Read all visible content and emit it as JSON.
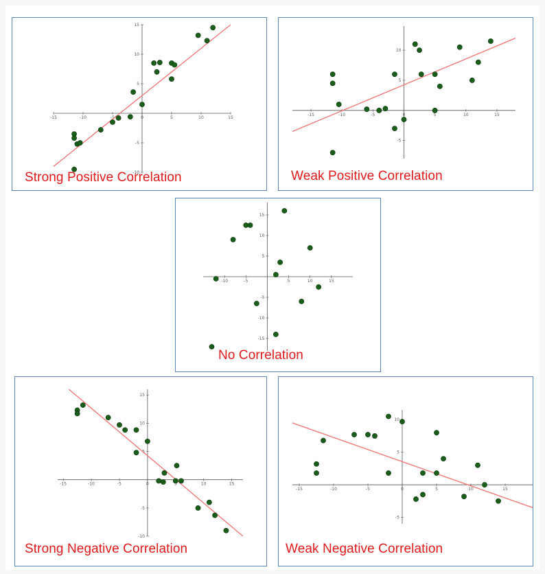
{
  "chart_data": [
    {
      "id": "strong-positive",
      "type": "scatter",
      "title": "Strong Positive Correlation",
      "xlim": [
        -15,
        15
      ],
      "ylim": [
        -10,
        15
      ],
      "xticks": [
        -15,
        -10,
        -5,
        0,
        5,
        10,
        15
      ],
      "yticks": [
        -10,
        -5,
        5,
        10,
        15
      ],
      "trendline": [
        [
          -15,
          -9
        ],
        [
          15,
          15
        ]
      ],
      "points": [
        [
          -11.5,
          -3.5
        ],
        [
          -11.5,
          -4.2
        ],
        [
          -11,
          -5.2
        ],
        [
          -11.5,
          -9.5
        ],
        [
          -10.5,
          -5
        ],
        [
          -7,
          -2.8
        ],
        [
          -5,
          -1.5
        ],
        [
          -4,
          -0.8
        ],
        [
          -2,
          -0.6
        ],
        [
          -1.5,
          3.6
        ],
        [
          0,
          1.5
        ],
        [
          2,
          8.5
        ],
        [
          2.5,
          7
        ],
        [
          3,
          8.6
        ],
        [
          5,
          8.5
        ],
        [
          5,
          5.8
        ],
        [
          5.5,
          8.2
        ],
        [
          9.5,
          13.2
        ],
        [
          11,
          12.3
        ],
        [
          12,
          14.5
        ]
      ]
    },
    {
      "id": "weak-positive",
      "type": "scatter",
      "title": "Weak Positive Correlation",
      "xlim": [
        -18,
        18
      ],
      "ylim": [
        -8,
        14
      ],
      "xticks": [
        -15,
        -10,
        -5,
        0,
        5,
        10,
        15
      ],
      "yticks": [
        -5,
        5,
        10
      ],
      "trendline": [
        [
          -18,
          -3.5
        ],
        [
          18,
          12
        ]
      ],
      "points": [
        [
          -11.5,
          6
        ],
        [
          -11.5,
          4.5
        ],
        [
          -10.5,
          1
        ],
        [
          -11.5,
          -7
        ],
        [
          -6,
          0.2
        ],
        [
          -4,
          0
        ],
        [
          -3,
          0.3
        ],
        [
          -1.5,
          6
        ],
        [
          -1.5,
          -3
        ],
        [
          0,
          -1.5
        ],
        [
          1.8,
          11
        ],
        [
          2.5,
          10
        ],
        [
          2.8,
          6
        ],
        [
          5,
          6
        ],
        [
          5,
          0
        ],
        [
          5.8,
          4
        ],
        [
          9,
          10.5
        ],
        [
          11,
          5
        ],
        [
          12,
          8
        ],
        [
          14,
          11.5
        ]
      ]
    },
    {
      "id": "no-correlation",
      "type": "scatter",
      "title": "No Correlation",
      "xlim": [
        -15,
        20
      ],
      "ylim": [
        -18,
        18
      ],
      "xticks": [
        -10,
        -5,
        5,
        10,
        15
      ],
      "yticks": [
        -15,
        -10,
        -5,
        5,
        10,
        15
      ],
      "trendline": null,
      "points": [
        [
          -12,
          -0.5
        ],
        [
          -8,
          9
        ],
        [
          -5,
          12.5
        ],
        [
          -4,
          12.5
        ],
        [
          4,
          16
        ],
        [
          3,
          3.5
        ],
        [
          2,
          0.5
        ],
        [
          -2.5,
          -6.5
        ],
        [
          2,
          -14
        ],
        [
          10,
          7
        ],
        [
          8,
          -6
        ],
        [
          12,
          -2.5
        ],
        [
          -13,
          -17
        ]
      ]
    },
    {
      "id": "strong-negative",
      "type": "scatter",
      "title": "Strong Negative Correlation",
      "xlim": [
        -16,
        17
      ],
      "ylim": [
        -10,
        16
      ],
      "xticks": [
        -15,
        -10,
        -5,
        0,
        5,
        10,
        15
      ],
      "yticks": [
        -10,
        -5,
        5,
        10,
        15
      ],
      "trendline": [
        [
          -14,
          16
        ],
        [
          17,
          -10
        ]
      ],
      "points": [
        [
          -12.5,
          12.3
        ],
        [
          -12.5,
          11.7
        ],
        [
          -11.5,
          13.2
        ],
        [
          -7,
          11
        ],
        [
          -5,
          9.7
        ],
        [
          -4,
          8.8
        ],
        [
          -2,
          8.8
        ],
        [
          -2,
          4.8
        ],
        [
          0,
          6.8
        ],
        [
          2,
          -0.2
        ],
        [
          2.8,
          -0.4
        ],
        [
          3,
          1.2
        ],
        [
          5,
          -0.2
        ],
        [
          5.2,
          2.5
        ],
        [
          6,
          -0.2
        ],
        [
          9,
          -5
        ],
        [
          11,
          -4
        ],
        [
          12,
          -6.3
        ],
        [
          14,
          -9
        ]
      ]
    },
    {
      "id": "weak-negative",
      "type": "scatter",
      "title": "Weak Negative Correlation",
      "xlim": [
        -16,
        19
      ],
      "ylim": [
        -6,
        11.5
      ],
      "xticks": [
        -15,
        -10,
        -5,
        0,
        5,
        10,
        15
      ],
      "yticks": [
        -5,
        5,
        10
      ],
      "trendline": [
        [
          -16,
          9.5
        ],
        [
          19,
          -3.5
        ]
      ],
      "points": [
        [
          -12.5,
          3.2
        ],
        [
          -12.5,
          1.8
        ],
        [
          -11.5,
          6.8
        ],
        [
          -7,
          7.7
        ],
        [
          -5,
          7.7
        ],
        [
          -4,
          7.5
        ],
        [
          -2,
          10.5
        ],
        [
          -2,
          1.8
        ],
        [
          0,
          9.7
        ],
        [
          2,
          -2.2
        ],
        [
          3,
          -1.5
        ],
        [
          3,
          1.8
        ],
        [
          5,
          8
        ],
        [
          5,
          1.8
        ],
        [
          6,
          4
        ],
        [
          9,
          -1.8
        ],
        [
          11,
          3
        ],
        [
          12,
          0
        ],
        [
          14,
          -2.5
        ]
      ]
    }
  ]
}
